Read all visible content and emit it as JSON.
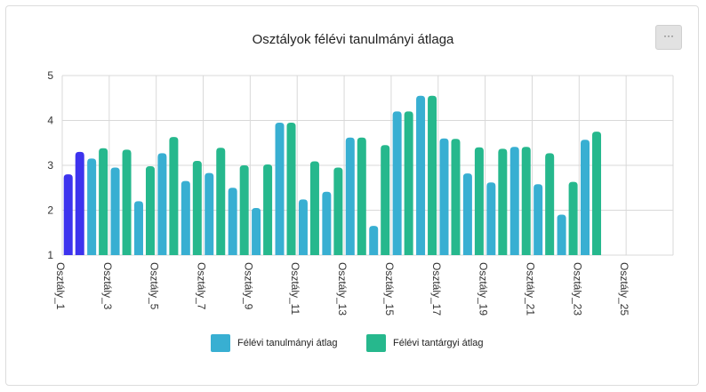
{
  "menu": {
    "label": "···"
  },
  "colors": {
    "series1": "#38afd2",
    "series2": "#26b88d",
    "highlight": "#3d33ee",
    "grid": "#d9d9d9",
    "axis": "#333333"
  },
  "chart_data": {
    "type": "bar",
    "title": "Osztályok félévi tanulmányi átlaga",
    "xlabel": "",
    "ylabel": "",
    "ylim": [
      1,
      5
    ],
    "yticks": [
      "1",
      "2",
      "3",
      "4",
      "5"
    ],
    "grid": true,
    "legend_position": "bottom",
    "categories": [
      "Osztály_1",
      "Osztály_2",
      "Osztály_3",
      "Osztály_4",
      "Osztály_5",
      "Osztály_6",
      "Osztály_7",
      "Osztály_8",
      "Osztály_9",
      "Osztály_10",
      "Osztály_11",
      "Osztály_12",
      "Osztály_13",
      "Osztály_14",
      "Osztály_15",
      "Osztály_16",
      "Osztály_17",
      "Osztály_18",
      "Osztály_19",
      "Osztály_20",
      "Osztály_21",
      "Osztály_22",
      "Osztály_23",
      "Osztály_24",
      "Osztály_25",
      "Osztály_26"
    ],
    "tick_labels": [
      "Osztály_1",
      "Osztály_3",
      "Osztály_5",
      "Osztály_7",
      "Osztály_9",
      "Osztály_11",
      "Osztály_13",
      "Osztály_15",
      "Osztály_17",
      "Osztály_19",
      "Osztály_21",
      "Osztály_23",
      "Osztály_25"
    ],
    "highlighted_category": "Osztály_1",
    "series": [
      {
        "name": "Félévi tanulmányi átlag",
        "values": [
          2.8,
          3.15,
          2.95,
          2.2,
          3.27,
          2.65,
          2.83,
          2.5,
          2.05,
          3.95,
          2.24,
          2.41,
          3.62,
          1.65,
          4.2,
          4.55,
          3.6,
          2.82,
          2.62,
          3.41,
          2.58,
          1.9,
          3.57,
          null,
          null,
          null
        ]
      },
      {
        "name": "Félévi tantárgyi átlag",
        "values": [
          3.3,
          3.38,
          3.35,
          2.98,
          3.63,
          3.1,
          3.39,
          3.0,
          3.02,
          3.95,
          3.09,
          2.95,
          3.62,
          3.45,
          4.2,
          4.55,
          3.59,
          3.4,
          3.37,
          3.41,
          3.27,
          2.63,
          3.75,
          null,
          null,
          null
        ]
      }
    ]
  }
}
